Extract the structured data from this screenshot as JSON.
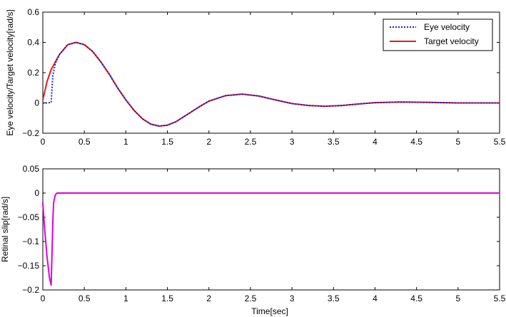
{
  "chart_data": [
    {
      "type": "line",
      "title": "",
      "xlabel": "",
      "ylabel": "Eye velocity/Target velocity[rad/s]",
      "xlim": [
        0,
        5.5
      ],
      "ylim": [
        -0.2,
        0.6
      ],
      "xticks": [
        0,
        0.5,
        1,
        1.5,
        2,
        2.5,
        3,
        3.5,
        4,
        4.5,
        5,
        5.5
      ],
      "xtick_labels": [
        "0",
        "0.5",
        "1",
        "1.5",
        "2",
        "2.5",
        "3",
        "3.5",
        "4",
        "4.5",
        "5",
        "5.5"
      ],
      "yticks": [
        -0.2,
        0,
        0.2,
        0.4,
        0.6
      ],
      "ytick_labels": [
        "−0.2",
        "0",
        "0.2",
        "0.4",
        "0.6"
      ],
      "grid": false,
      "legend_position": "top-right",
      "series": [
        {
          "name": "Eye velocity",
          "color": "#1f1fd0",
          "style": "dotted",
          "x": [
            0,
            0.05,
            0.1,
            0.12,
            0.15,
            0.2,
            0.3,
            0.4,
            0.5,
            0.6,
            0.7,
            0.8,
            0.9,
            1.0,
            1.1,
            1.2,
            1.3,
            1.4,
            1.5,
            1.6,
            1.7,
            1.8,
            1.9,
            2.0,
            2.2,
            2.4,
            2.6,
            2.8,
            3.0,
            3.2,
            3.4,
            3.6,
            3.8,
            4.0,
            4.3,
            4.6,
            5.0,
            5.5
          ],
          "y": [
            0,
            0,
            0.003,
            0.18,
            0.26,
            0.32,
            0.385,
            0.4,
            0.385,
            0.34,
            0.27,
            0.19,
            0.1,
            0.02,
            -0.05,
            -0.105,
            -0.14,
            -0.153,
            -0.147,
            -0.125,
            -0.09,
            -0.055,
            -0.02,
            0.012,
            0.048,
            0.058,
            0.046,
            0.02,
            -0.004,
            -0.017,
            -0.022,
            -0.017,
            -0.007,
            0.002,
            0.006,
            0.004,
            0.0,
            0.0
          ]
        },
        {
          "name": "Target velocity",
          "color": "#dd1c1c",
          "style": "solid",
          "x": [
            0,
            0.05,
            0.1,
            0.15,
            0.2,
            0.3,
            0.4,
            0.5,
            0.6,
            0.7,
            0.8,
            0.9,
            1.0,
            1.1,
            1.2,
            1.3,
            1.4,
            1.5,
            1.6,
            1.7,
            1.8,
            1.9,
            2.0,
            2.2,
            2.4,
            2.6,
            2.8,
            3.0,
            3.2,
            3.4,
            3.6,
            3.8,
            4.0,
            4.3,
            4.6,
            5.0,
            5.5
          ],
          "y": [
            0.02,
            0.14,
            0.22,
            0.27,
            0.32,
            0.385,
            0.4,
            0.385,
            0.34,
            0.27,
            0.19,
            0.1,
            0.02,
            -0.05,
            -0.105,
            -0.14,
            -0.153,
            -0.147,
            -0.125,
            -0.09,
            -0.055,
            -0.02,
            0.012,
            0.048,
            0.058,
            0.046,
            0.02,
            -0.004,
            -0.017,
            -0.022,
            -0.017,
            -0.007,
            0.002,
            0.006,
            0.004,
            0.0,
            0.0
          ]
        }
      ]
    },
    {
      "type": "line",
      "title": "",
      "xlabel": "Time[sec]",
      "ylabel": "Retinal slip[rad/s]",
      "xlim": [
        0,
        5.5
      ],
      "ylim": [
        -0.2,
        0.05
      ],
      "xticks": [
        0,
        0.5,
        1,
        1.5,
        2,
        2.5,
        3,
        3.5,
        4,
        4.5,
        5,
        5.5
      ],
      "xtick_labels": [
        "0",
        "0.5",
        "1",
        "1.5",
        "2",
        "2.5",
        "3",
        "3.5",
        "4",
        "4.5",
        "5",
        "5.5"
      ],
      "yticks": [
        -0.2,
        -0.15,
        -0.1,
        -0.05,
        0,
        0.05
      ],
      "ytick_labels": [
        "−0.2",
        "−0.15",
        "−0.1",
        "−0.05",
        "0",
        "0.05"
      ],
      "grid": false,
      "series": [
        {
          "color": "#e000e0",
          "style": "solid",
          "x": [
            0,
            0.02,
            0.05,
            0.08,
            0.1,
            0.11,
            0.12,
            0.13,
            0.15,
            0.17,
            0.2,
            0.3,
            1.0,
            2.0,
            3.0,
            4.0,
            5.0,
            5.5
          ],
          "y": [
            -0.02,
            -0.07,
            -0.13,
            -0.175,
            -0.19,
            -0.13,
            -0.06,
            -0.02,
            -0.004,
            0.0,
            0.0,
            0.0,
            0.0,
            0.0,
            0.0,
            0.0,
            0.0,
            0.0
          ]
        }
      ]
    }
  ]
}
